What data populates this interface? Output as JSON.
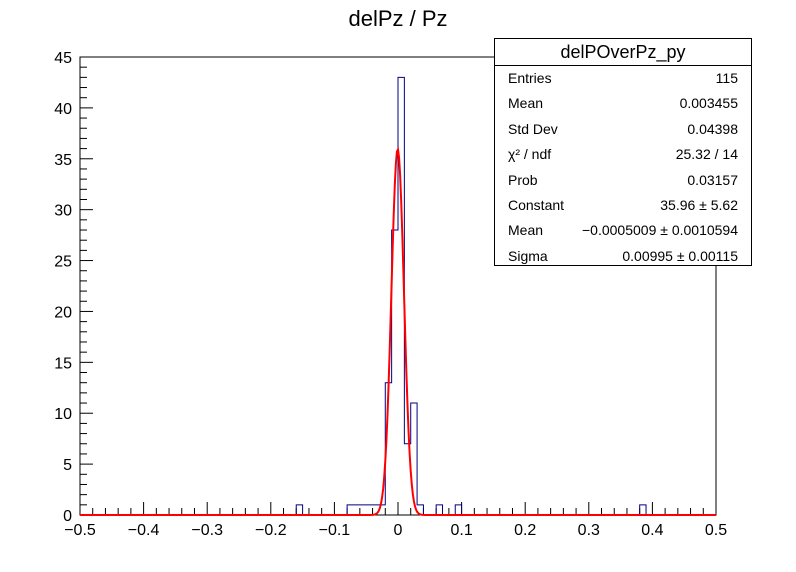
{
  "chart_data": {
    "type": "bar",
    "title": "delPz / Pz",
    "xlabel": "",
    "ylabel": "",
    "xlim": [
      -0.5,
      0.5
    ],
    "ylim": [
      0,
      45
    ],
    "bins": 100,
    "bin_width": 0.01,
    "xticks": [
      "−0.5",
      "−0.4",
      "−0.3",
      "−0.2",
      "−0.1",
      "0",
      "0.1",
      "0.2",
      "0.3",
      "0.4",
      "0.5"
    ],
    "yticks": [
      "0",
      "5",
      "10",
      "15",
      "20",
      "25",
      "30",
      "35",
      "40",
      "45"
    ],
    "histogram": {
      "bin_edges_start": -0.5,
      "nonzero_bins": [
        {
          "x": -0.16,
          "count": 1
        },
        {
          "x": -0.08,
          "count": 1
        },
        {
          "x": -0.07,
          "count": 1
        },
        {
          "x": -0.06,
          "count": 1
        },
        {
          "x": -0.05,
          "count": 1
        },
        {
          "x": -0.04,
          "count": 1
        },
        {
          "x": -0.03,
          "count": 1
        },
        {
          "x": -0.02,
          "count": 13
        },
        {
          "x": -0.01,
          "count": 28
        },
        {
          "x": 0.0,
          "count": 43
        },
        {
          "x": 0.01,
          "count": 7
        },
        {
          "x": 0.02,
          "count": 11
        },
        {
          "x": 0.03,
          "count": 1
        },
        {
          "x": 0.06,
          "count": 1
        },
        {
          "x": 0.09,
          "count": 1
        },
        {
          "x": 0.38,
          "count": 1
        }
      ],
      "color": "#000080"
    },
    "fit": {
      "function": "gaus",
      "constant": 35.96,
      "mean": -0.0005009,
      "sigma": 0.00995,
      "color": "#ff0000"
    },
    "stats_box": {
      "title": "delPOverPz_py",
      "rows": [
        {
          "key": "Entries",
          "value": "115"
        },
        {
          "key": "Mean",
          "value": "0.003455"
        },
        {
          "key": "Std Dev",
          "value": "0.04398"
        },
        {
          "key": "χ² / ndf",
          "value": "25.32 / 14"
        },
        {
          "key": "Prob",
          "value": "0.03157"
        },
        {
          "key": "Constant",
          "value": "35.96 ± 5.62"
        },
        {
          "key": "Mean",
          "value": "−0.0005009 ± 0.0010594"
        },
        {
          "key": "Sigma",
          "value": "0.00995 ± 0.00115"
        }
      ]
    }
  }
}
